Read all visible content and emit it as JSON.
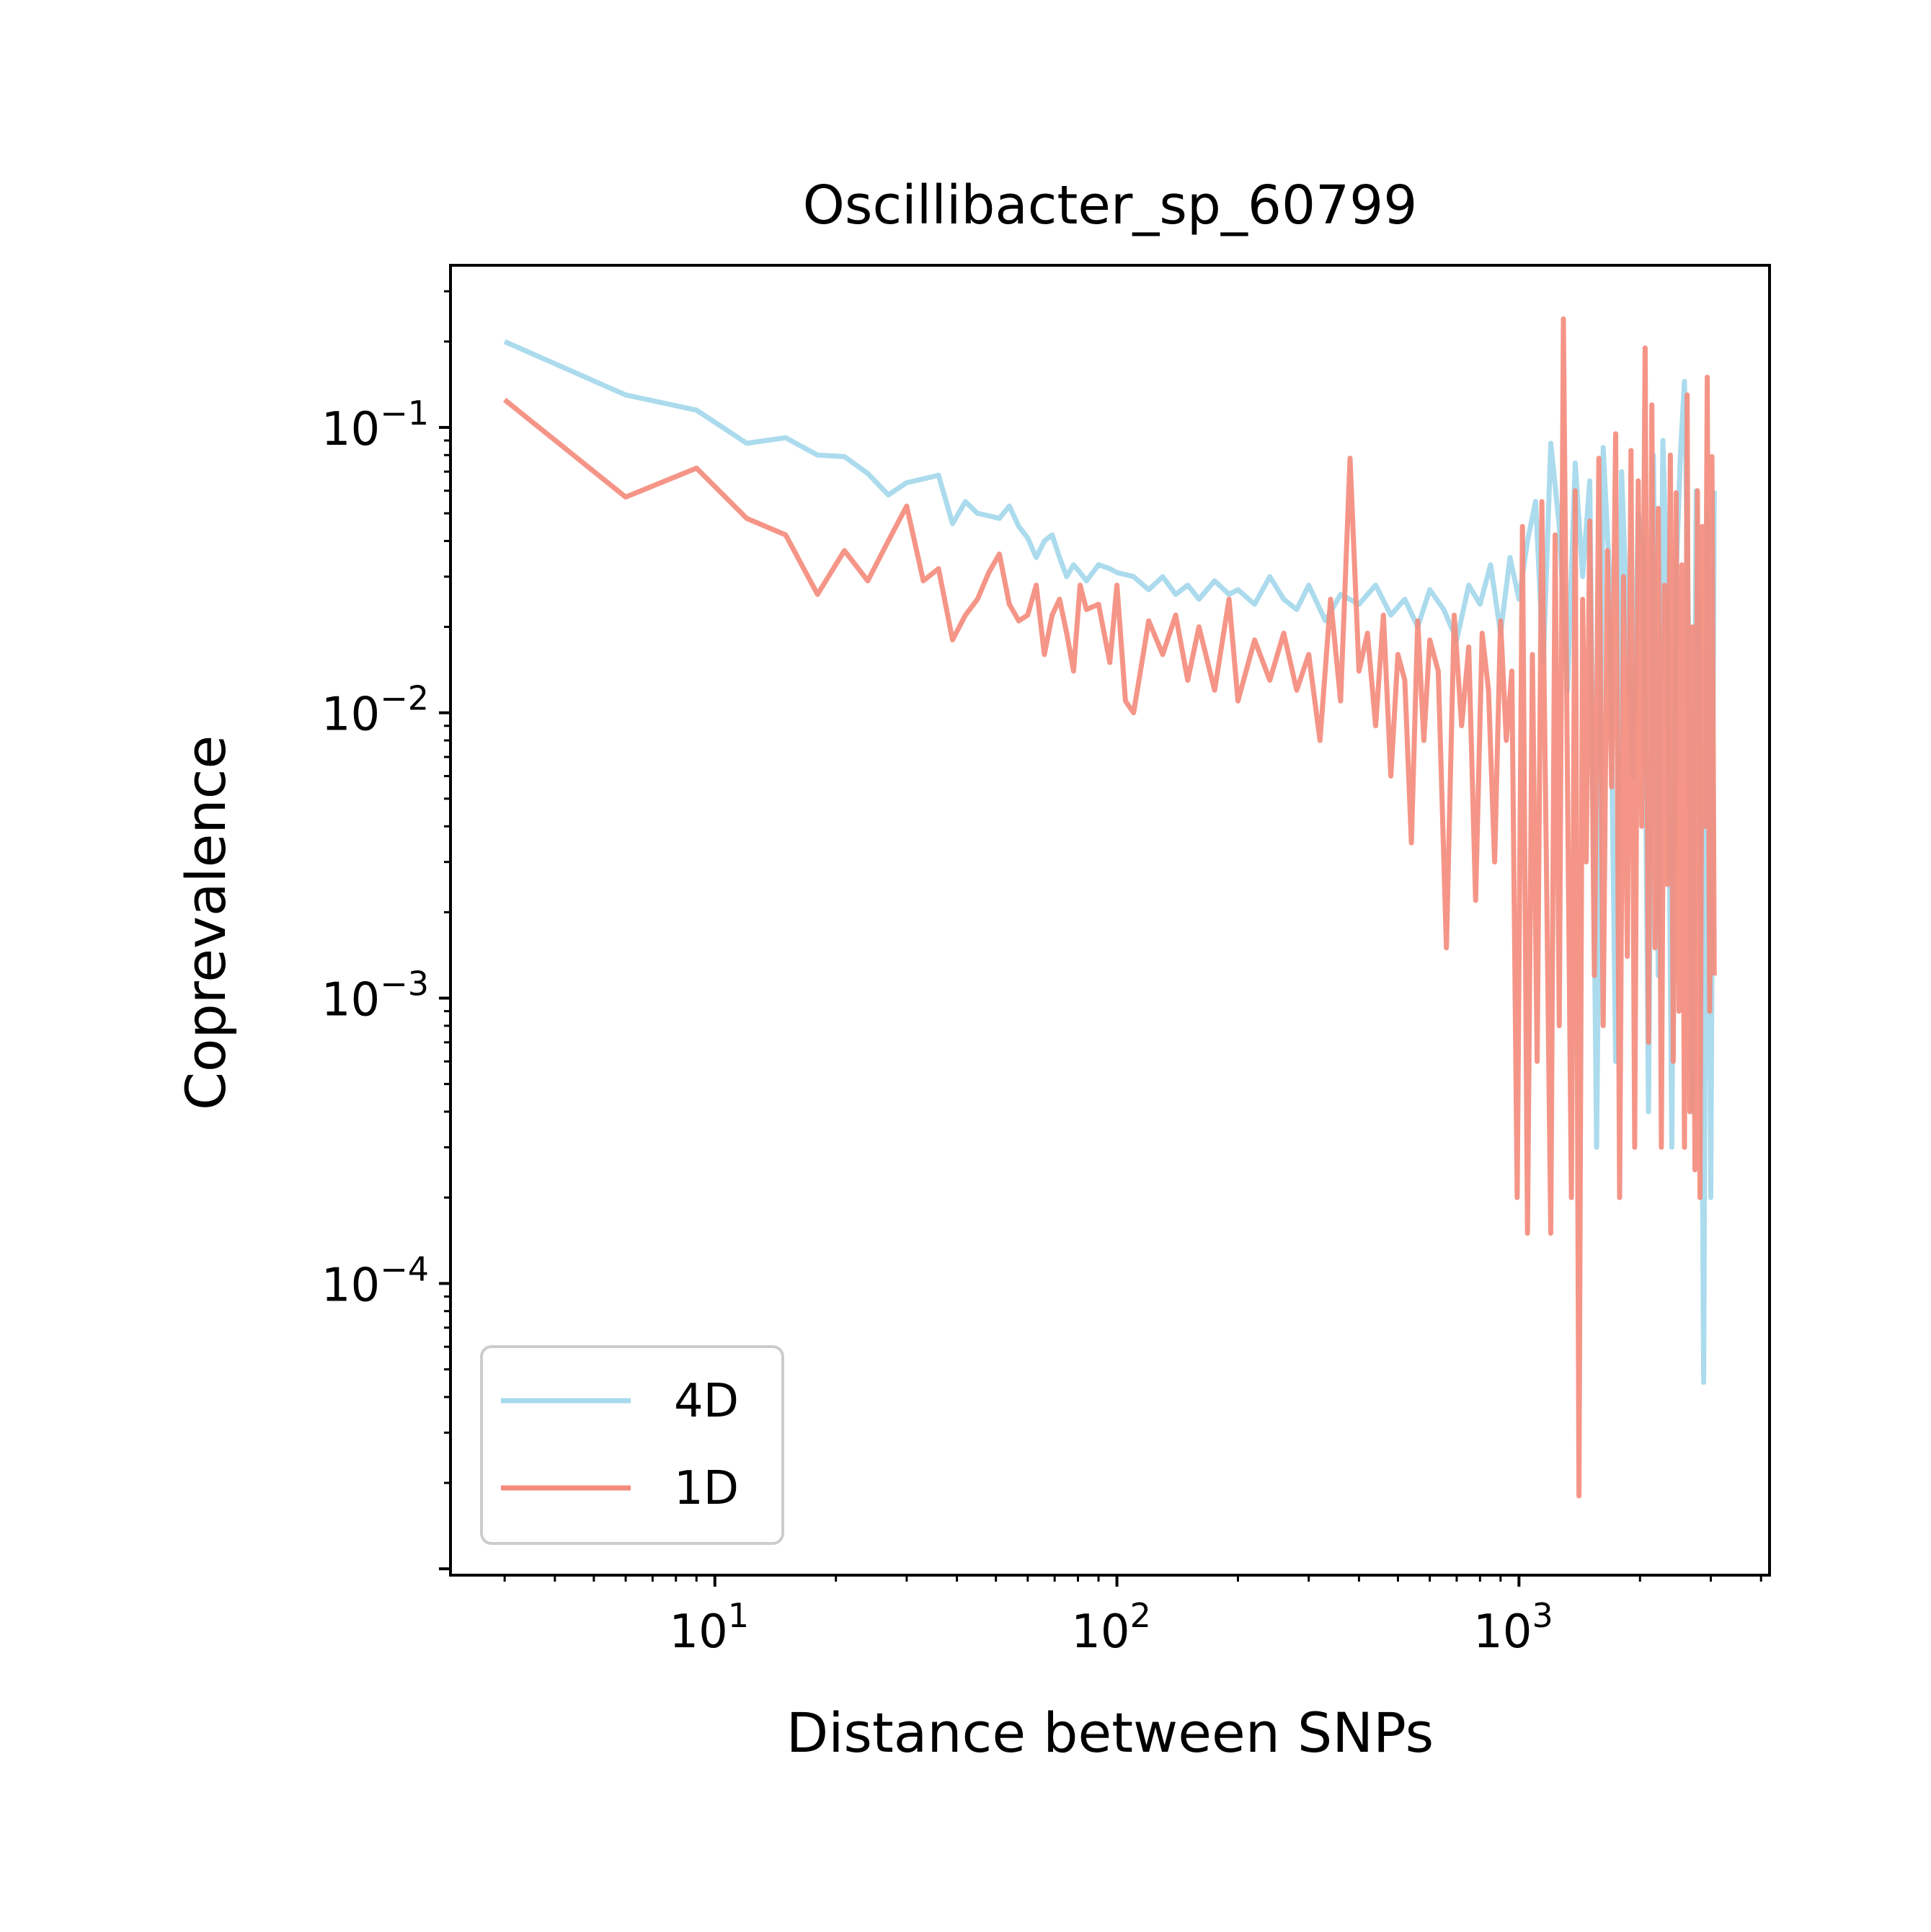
{
  "chart_data": {
    "type": "line",
    "title": "Oscillibacter_sp_60799",
    "xlabel": "Distance between SNPs",
    "ylabel": "Coprevalence",
    "xscale": "log",
    "yscale": "log",
    "xlim": [
      2.2,
      4200
    ],
    "ylim": [
      9.5e-06,
      0.37
    ],
    "x_tick_labels": [
      {
        "base": "10",
        "exp": "1",
        "value": 10
      },
      {
        "base": "10",
        "exp": "2",
        "value": 100
      },
      {
        "base": "10",
        "exp": "3",
        "value": 1000
      }
    ],
    "y_tick_labels": [
      {
        "base": "10",
        "exp": "−1",
        "value": 0.1
      },
      {
        "base": "10",
        "exp": "−2",
        "value": 0.01
      },
      {
        "base": "10",
        "exp": "−3",
        "value": 0.001
      },
      {
        "base": "10",
        "exp": "−4",
        "value": 0.0001
      }
    ],
    "grid": false,
    "legend_position": "lower left",
    "series": [
      {
        "name": "4D",
        "color": "#a6d9ec",
        "x": [
          3,
          6,
          9,
          12,
          15,
          18,
          21,
          24,
          27,
          30,
          33,
          36,
          39,
          42,
          45,
          48,
          51,
          54,
          57,
          60,
          63,
          66,
          69,
          72,
          75,
          78,
          81,
          84,
          90,
          96,
          100,
          110,
          120,
          130,
          140,
          150,
          160,
          175,
          190,
          200,
          220,
          240,
          260,
          280,
          300,
          330,
          360,
          400,
          440,
          480,
          520,
          560,
          600,
          650,
          700,
          750,
          800,
          850,
          900,
          950,
          1000,
          1050,
          1100,
          1150,
          1200,
          1260,
          1320,
          1380,
          1440,
          1500,
          1560,
          1620,
          1680,
          1740,
          1800,
          1860,
          1920,
          1980,
          2040,
          2100,
          2160,
          2220,
          2280,
          2340,
          2400,
          2460,
          2520,
          2580,
          2640,
          2700,
          2760,
          2820,
          2880,
          2940,
          3000,
          3060
        ],
        "y": [
          0.2,
          0.13,
          0.115,
          0.088,
          0.092,
          0.08,
          0.079,
          0.069,
          0.058,
          0.064,
          0.066,
          0.068,
          0.046,
          0.055,
          0.05,
          0.049,
          0.048,
          0.053,
          0.045,
          0.041,
          0.035,
          0.04,
          0.042,
          0.035,
          0.03,
          0.033,
          0.031,
          0.029,
          0.033,
          0.032,
          0.031,
          0.03,
          0.027,
          0.03,
          0.026,
          0.028,
          0.025,
          0.029,
          0.026,
          0.027,
          0.024,
          0.03,
          0.025,
          0.023,
          0.028,
          0.021,
          0.026,
          0.024,
          0.028,
          0.022,
          0.025,
          0.02,
          0.027,
          0.023,
          0.018,
          0.028,
          0.024,
          0.033,
          0.019,
          0.035,
          0.025,
          0.04,
          0.055,
          0.015,
          0.088,
          0.045,
          0.012,
          0.075,
          0.03,
          0.065,
          0.0003,
          0.085,
          0.03,
          0.0006,
          0.07,
          0.02,
          0.006,
          0.05,
          0.04,
          0.0004,
          0.08,
          0.0012,
          0.09,
          0.025,
          0.0003,
          0.03,
          0.08,
          0.145,
          0.02,
          0.0004,
          0.06,
          0.01,
          4.5e-05,
          0.05,
          0.0002,
          0.06
        ]
      },
      {
        "name": "1D",
        "color": "#f48a7a",
        "x": [
          3,
          6,
          9,
          12,
          15,
          18,
          21,
          24,
          27,
          30,
          33,
          36,
          39,
          42,
          45,
          48,
          51,
          54,
          57,
          60,
          63,
          66,
          69,
          72,
          75,
          78,
          81,
          84,
          90,
          96,
          100,
          105,
          110,
          120,
          130,
          140,
          150,
          160,
          175,
          190,
          200,
          220,
          240,
          260,
          280,
          300,
          320,
          340,
          360,
          380,
          400,
          420,
          440,
          460,
          480,
          500,
          520,
          540,
          560,
          580,
          600,
          630,
          660,
          690,
          720,
          750,
          780,
          810,
          840,
          870,
          900,
          930,
          960,
          990,
          1020,
          1050,
          1080,
          1110,
          1140,
          1170,
          1200,
          1230,
          1260,
          1290,
          1320,
          1350,
          1380,
          1410,
          1440,
          1470,
          1500,
          1540,
          1580,
          1620,
          1660,
          1700,
          1740,
          1780,
          1820,
          1860,
          1900,
          1940,
          1980,
          2020,
          2060,
          2100,
          2140,
          2180,
          2220,
          2260,
          2300,
          2340,
          2380,
          2420,
          2460,
          2500,
          2540,
          2580,
          2620,
          2660,
          2700,
          2740,
          2780,
          2820,
          2860,
          2900,
          2940,
          2980,
          3020,
          3060
        ],
        "y": [
          0.125,
          0.057,
          0.072,
          0.048,
          0.042,
          0.026,
          0.037,
          0.029,
          0.04,
          0.053,
          0.029,
          0.032,
          0.018,
          0.022,
          0.025,
          0.031,
          0.036,
          0.024,
          0.021,
          0.022,
          0.028,
          0.016,
          0.022,
          0.025,
          0.019,
          0.014,
          0.028,
          0.023,
          0.024,
          0.015,
          0.028,
          0.011,
          0.01,
          0.021,
          0.016,
          0.022,
          0.013,
          0.02,
          0.012,
          0.025,
          0.011,
          0.018,
          0.013,
          0.019,
          0.012,
          0.016,
          0.008,
          0.025,
          0.011,
          0.078,
          0.014,
          0.019,
          0.009,
          0.022,
          0.006,
          0.016,
          0.013,
          0.0035,
          0.021,
          0.008,
          0.018,
          0.014,
          0.0015,
          0.022,
          0.009,
          0.017,
          0.0022,
          0.019,
          0.012,
          0.003,
          0.021,
          0.008,
          0.014,
          0.0002,
          0.045,
          0.00015,
          0.016,
          0.0006,
          0.055,
          0.003,
          0.00015,
          0.042,
          0.0008,
          0.24,
          0.006,
          0.0002,
          0.06,
          1.8e-05,
          0.025,
          0.003,
          0.047,
          0.0012,
          0.078,
          0.0008,
          0.037,
          0.0055,
          0.095,
          0.0002,
          0.03,
          0.0014,
          0.083,
          0.0003,
          0.065,
          0.004,
          0.19,
          0.0007,
          0.12,
          0.0015,
          0.052,
          0.0003,
          0.028,
          0.0025,
          0.08,
          0.0006,
          0.059,
          0.0009,
          0.033,
          0.0003,
          0.13,
          0.0004,
          0.02,
          0.00025,
          0.06,
          0.0002,
          0.045,
          0.004,
          0.15,
          0.0009,
          0.079,
          0.0012
        ]
      }
    ]
  }
}
